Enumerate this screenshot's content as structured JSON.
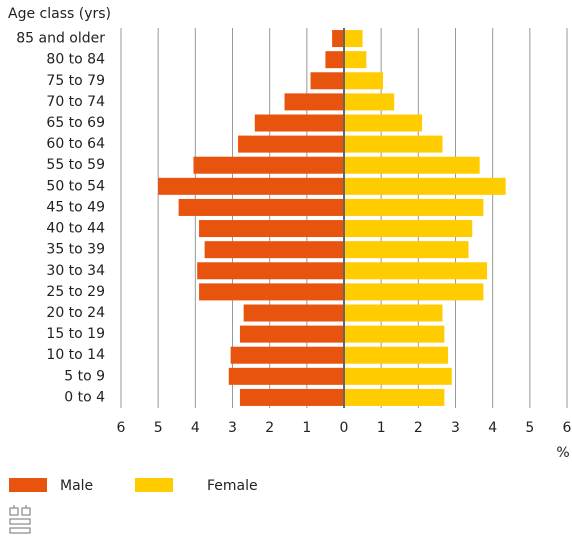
{
  "chart_data": {
    "type": "pyramid",
    "y_axis_label": "Age class (yrs)",
    "x_axis_label": "%",
    "categories": [
      "85 and older",
      "80 to 84",
      "75 to 79",
      "70 to 74",
      "65 to 69",
      "60 to 64",
      "55 to 59",
      "50 to 54",
      "45 to 49",
      "40 to 44",
      "35 to 39",
      "30 to 34",
      "25 to 29",
      "20 to 24",
      "15 to 19",
      "10 to 14",
      "5 to 9",
      "0 to 4"
    ],
    "series": [
      {
        "name": "Male",
        "color": "#e8530e",
        "side": "left",
        "values": [
          0.32,
          0.5,
          0.9,
          1.6,
          2.4,
          2.85,
          4.05,
          5.0,
          4.45,
          3.9,
          3.75,
          3.95,
          3.9,
          2.7,
          2.8,
          3.05,
          3.1,
          2.8
        ]
      },
      {
        "name": "Female",
        "color": "#ffcc00",
        "side": "right",
        "values": [
          0.5,
          0.6,
          1.05,
          1.35,
          2.1,
          2.65,
          3.65,
          4.35,
          3.75,
          3.45,
          3.35,
          3.85,
          3.75,
          2.65,
          2.7,
          2.8,
          2.9,
          2.7
        ]
      }
    ],
    "xlim": [
      -6,
      6
    ],
    "xticks": [
      {
        "value": -6,
        "label": "6"
      },
      {
        "value": -5,
        "label": "5"
      },
      {
        "value": -4,
        "label": "4"
      },
      {
        "value": -3,
        "label": "3"
      },
      {
        "value": -2,
        "label": "2"
      },
      {
        "value": -1,
        "label": "1"
      },
      0,
      1,
      2,
      3,
      4,
      5,
      6
    ],
    "grid": true
  }
}
